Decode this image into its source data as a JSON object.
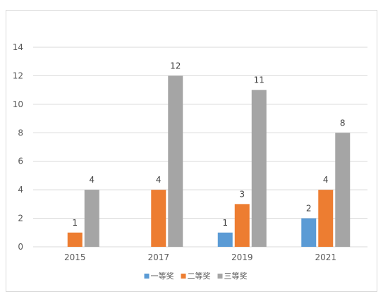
{
  "chart_data": {
    "type": "bar",
    "categories": [
      "2015",
      "2017",
      "2019",
      "2021"
    ],
    "series": [
      {
        "name": "一等奖",
        "color": "#5b9bd5",
        "values": [
          null,
          null,
          1,
          2
        ]
      },
      {
        "name": "二等奖",
        "color": "#ed7d31",
        "values": [
          1,
          4,
          3,
          4
        ]
      },
      {
        "name": "三等奖",
        "color": "#a5a5a5",
        "values": [
          4,
          12,
          11,
          8
        ]
      }
    ],
    "ylim": [
      0,
      14
    ],
    "yticks": [
      0,
      2,
      4,
      6,
      8,
      10,
      12,
      14
    ],
    "grid": true,
    "legend": "bottom",
    "data_labels": true
  }
}
